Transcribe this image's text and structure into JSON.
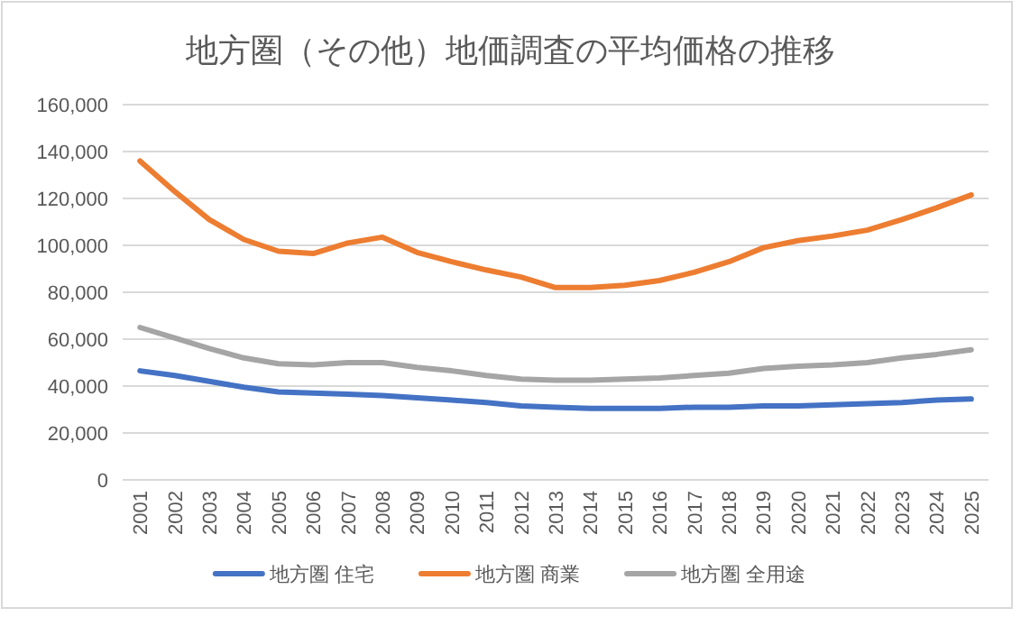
{
  "chart_data": {
    "type": "line",
    "title": "地方圏（その他）地価調査の平均価格の推移",
    "categories": [
      "2001",
      "2002",
      "2003",
      "2004",
      "2005",
      "2006",
      "2007",
      "2008",
      "2009",
      "2010",
      "2011",
      "2012",
      "2013",
      "2014",
      "2015",
      "2016",
      "2017",
      "2018",
      "2019",
      "2020",
      "2021",
      "2022",
      "2023",
      "2024",
      "2025"
    ],
    "series": [
      {
        "name": "地方圏 住宅",
        "color": "#4472c4",
        "values": [
          46500,
          44500,
          42000,
          39500,
          37500,
          37000,
          36500,
          36000,
          35000,
          34000,
          33000,
          31500,
          31000,
          30500,
          30500,
          30500,
          31000,
          31000,
          31500,
          31500,
          32000,
          32500,
          33000,
          34000,
          34500
        ]
      },
      {
        "name": "地方圏 商業",
        "color": "#ed7d31",
        "values": [
          136000,
          123000,
          111000,
          102500,
          97500,
          96500,
          101000,
          103500,
          97000,
          93000,
          89500,
          86500,
          82000,
          82000,
          83000,
          85000,
          88500,
          93000,
          99000,
          102000,
          104000,
          106500,
          111000,
          116000,
          121500
        ]
      },
      {
        "name": "地方圏 全用途",
        "color": "#a5a5a5",
        "values": [
          65000,
          60500,
          56000,
          52000,
          49500,
          49000,
          50000,
          50000,
          48000,
          46500,
          44500,
          43000,
          42500,
          42500,
          43000,
          43500,
          44500,
          45500,
          47500,
          48500,
          49000,
          50000,
          52000,
          53500,
          55500
        ]
      }
    ],
    "ylim": [
      0,
      160000
    ],
    "yticks": [
      0,
      {
        "value": 20000,
        "label": "20,000"
      },
      {
        "value": 40000,
        "label": "40,000"
      },
      {
        "value": 60000,
        "label": "60,000"
      },
      {
        "value": 80000,
        "label": "80,000"
      },
      {
        "value": 100000,
        "label": "100,000"
      },
      {
        "value": 120000,
        "label": "120,000"
      },
      {
        "value": 140000,
        "label": "140,000"
      },
      {
        "value": 160000,
        "label": "160,000"
      }
    ],
    "grid": "y",
    "legend": "bottom",
    "marker": "none",
    "line_style": "solid"
  }
}
